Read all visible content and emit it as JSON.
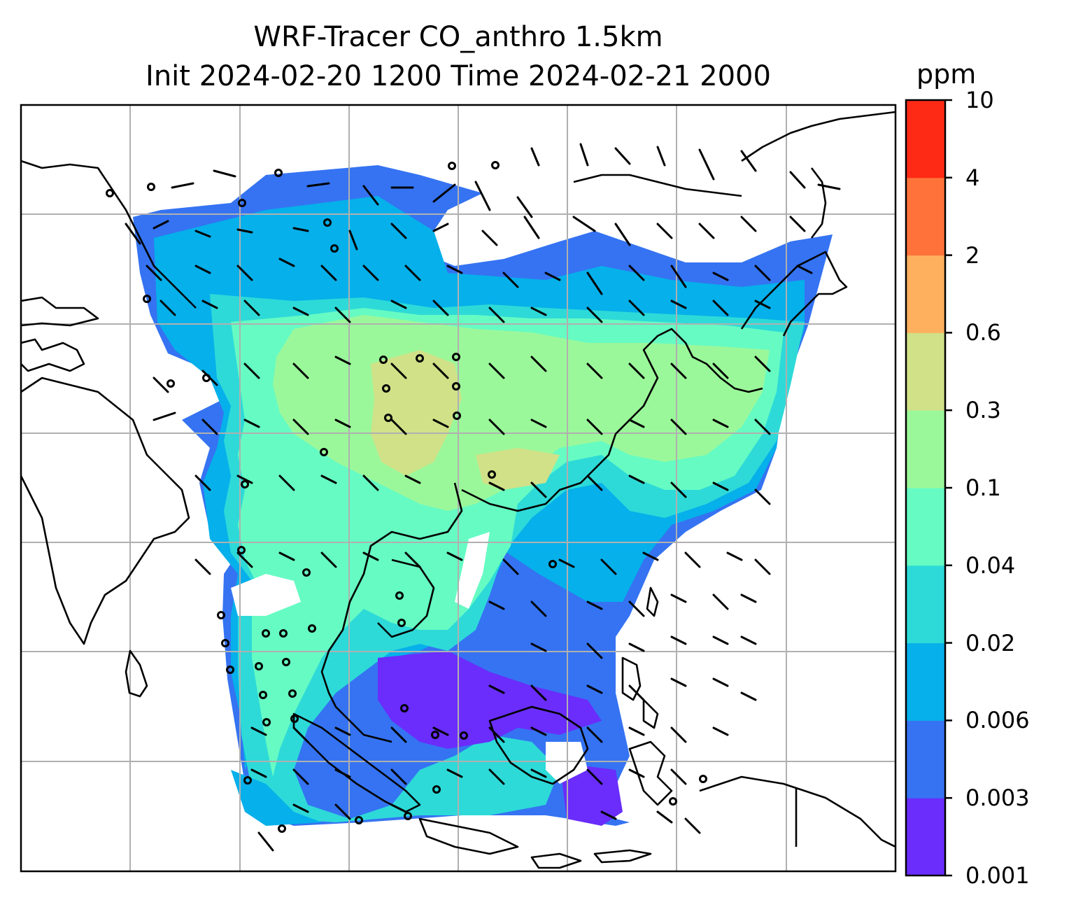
{
  "title_line1": "WRF-Tracer CO_anthro 1.5km",
  "title_line2": "Init 2024-02-20 1200 Time 2024-02-21 2000",
  "colorbar": {
    "unit": "ppm",
    "ticks": [
      "0.001",
      "0.003",
      "0.006",
      "0.02",
      "0.04",
      "0.1",
      "0.3",
      "0.6",
      "2",
      "4",
      "10"
    ],
    "colors": [
      "#6a2dfb",
      "#3573f2",
      "#06b0ea",
      "#2ddad8",
      "#66fbc3",
      "#9bf89a",
      "#d0e188",
      "#ffb05e",
      "#ff733a",
      "#ff2a15"
    ]
  },
  "map": {
    "gridlines": true,
    "grid_color": "#b0b0b0",
    "field": "CO_anthro tracer concentration with wind barbs and coastlines"
  }
}
